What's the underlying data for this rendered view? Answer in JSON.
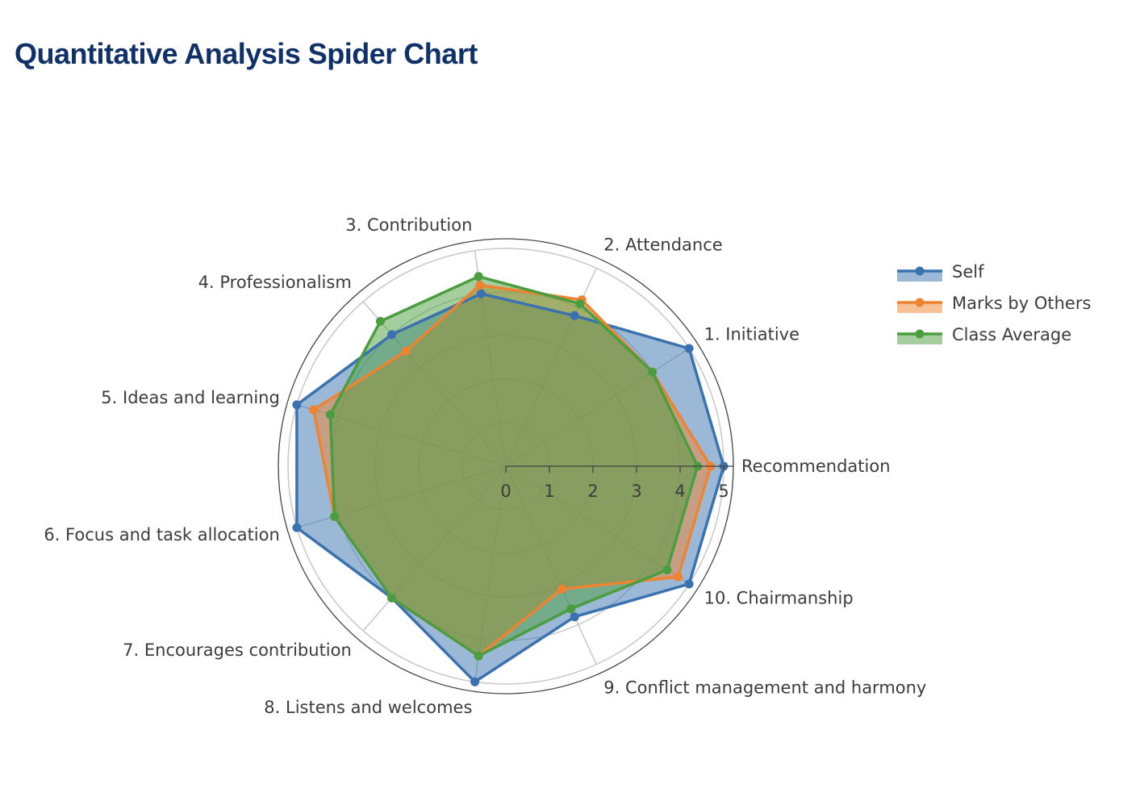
{
  "chart_data": {
    "type": "radar",
    "title": "Quantitative Analysis Spider Chart",
    "categories": [
      "Recommendation",
      "1. Initiative",
      "2. Attendance",
      "3. Contribution",
      "4. Professionalism",
      "5. Ideas and learning",
      "6. Focus and task allocation",
      "7. Encourages contribution",
      "8. Listens and welcomes",
      "9. Conflict management and harmony",
      "10. Chairmanship"
    ],
    "radial_range": [
      0,
      5
    ],
    "radial_ticks": [
      "0",
      "1",
      "2",
      "3",
      "4",
      "5"
    ],
    "series": [
      {
        "name": "Self",
        "color": "#3a72b0",
        "values": [
          5.0,
          5.0,
          3.8,
          4.0,
          4.0,
          5.0,
          5.0,
          4.0,
          5.0,
          3.8,
          5.0
        ]
      },
      {
        "name": "Marks by Others",
        "color": "#ee8330",
        "values": [
          4.7,
          4.0,
          4.2,
          4.2,
          3.5,
          4.6,
          4.1,
          4.0,
          4.4,
          3.1,
          4.7
        ]
      },
      {
        "name": "Class Average",
        "color": "#4b9e3f",
        "values": [
          4.4,
          4.0,
          4.1,
          4.4,
          4.4,
          4.2,
          4.1,
          4.0,
          4.4,
          3.6,
          4.4
        ]
      }
    ],
    "legend_position": "right"
  }
}
